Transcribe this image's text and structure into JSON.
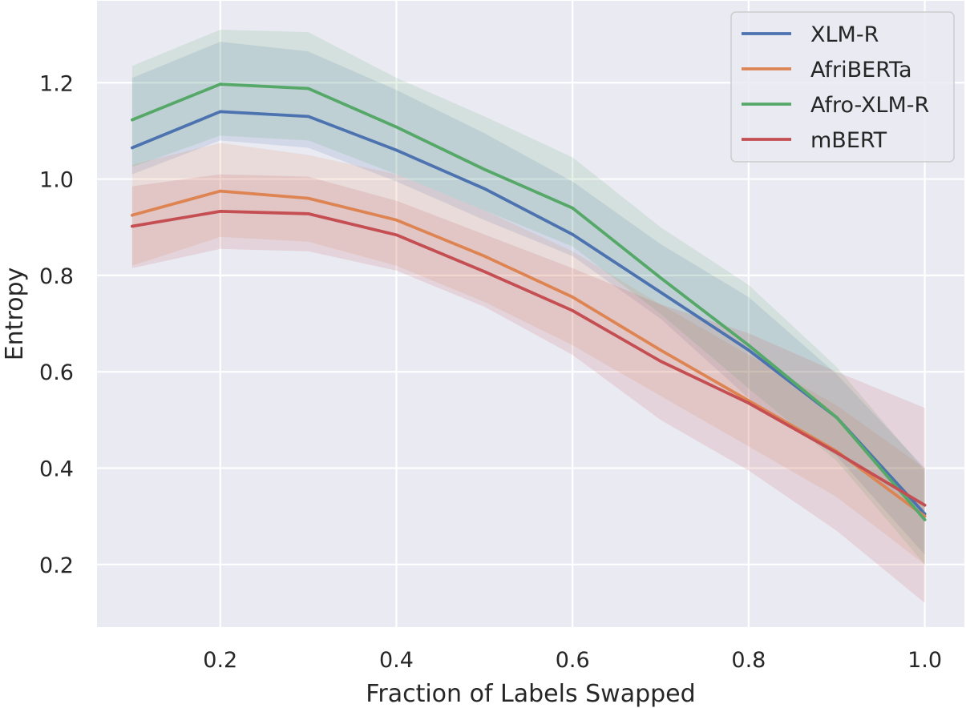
{
  "chart_data": {
    "type": "line",
    "xlabel": "Fraction of Labels Swapped",
    "ylabel": "Entropy",
    "x": [
      0.1,
      0.2,
      0.3,
      0.4,
      0.5,
      0.6,
      0.7,
      0.8,
      0.9,
      1.0
    ],
    "xlim": [
      0.06,
      1.045
    ],
    "ylim": [
      0.07,
      1.37
    ],
    "xticks": [
      0.2,
      0.4,
      0.6,
      0.8,
      1.0
    ],
    "xtick_labels": [
      "0.2",
      "0.4",
      "0.6",
      "0.8",
      "1.0"
    ],
    "yticks": [
      0.2,
      0.4,
      0.6,
      0.8,
      1.0,
      1.2
    ],
    "ytick_labels": [
      "0.2",
      "0.4",
      "0.6",
      "0.8",
      "1.0",
      "1.2"
    ],
    "grid": true,
    "legend_position": "top-right",
    "series": [
      {
        "name": "XLM-R",
        "color": "#4c72b0",
        "values": [
          1.065,
          1.14,
          1.13,
          1.06,
          0.98,
          0.885,
          0.765,
          0.645,
          0.505,
          0.305
        ],
        "lower": [
          1.01,
          1.08,
          1.065,
          0.995,
          0.915,
          0.84,
          0.71,
          0.545,
          0.425,
          0.22
        ],
        "upper": [
          1.21,
          1.285,
          1.265,
          1.185,
          1.095,
          0.995,
          0.865,
          0.755,
          0.595,
          0.4
        ]
      },
      {
        "name": "AfriBERTa",
        "color": "#dd8452",
        "values": [
          0.925,
          0.975,
          0.96,
          0.915,
          0.84,
          0.755,
          0.645,
          0.54,
          0.435,
          0.3
        ],
        "lower": [
          0.82,
          0.88,
          0.87,
          0.82,
          0.745,
          0.655,
          0.55,
          0.445,
          0.34,
          0.2
        ],
        "upper": [
          1.03,
          1.075,
          1.05,
          1.01,
          0.935,
          0.85,
          0.74,
          0.635,
          0.53,
          0.4
        ]
      },
      {
        "name": "Afro-XLM-R",
        "color": "#55a868",
        "values": [
          1.123,
          1.197,
          1.188,
          1.108,
          1.02,
          0.94,
          0.795,
          0.655,
          0.505,
          0.293
        ],
        "lower": [
          1.025,
          1.09,
          1.08,
          1.01,
          0.935,
          0.86,
          0.72,
          0.565,
          0.415,
          0.2
        ],
        "upper": [
          1.235,
          1.31,
          1.305,
          1.21,
          1.13,
          1.045,
          0.9,
          0.78,
          0.61,
          0.395
        ]
      },
      {
        "name": "mBERT",
        "color": "#c44e52",
        "values": [
          0.902,
          0.933,
          0.928,
          0.884,
          0.808,
          0.727,
          0.622,
          0.535,
          0.432,
          0.323
        ],
        "lower": [
          0.815,
          0.855,
          0.85,
          0.81,
          0.735,
          0.635,
          0.5,
          0.395,
          0.27,
          0.12
        ],
        "upper": [
          0.985,
          1.01,
          1.005,
          0.955,
          0.885,
          0.815,
          0.74,
          0.68,
          0.6,
          0.525
        ]
      }
    ]
  }
}
